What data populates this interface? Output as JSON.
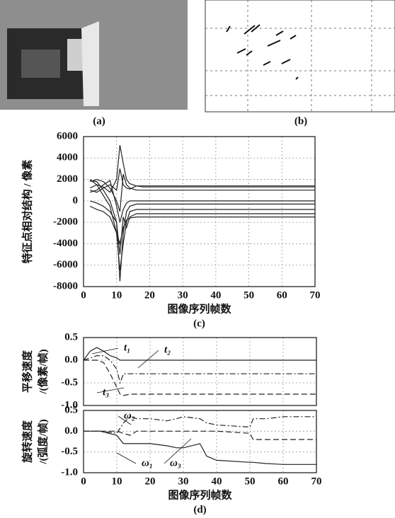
{
  "figures": [
    {
      "caption": "(a)"
    },
    {
      "caption": "(b)"
    }
  ],
  "chart_data": [
    {
      "type": "line",
      "caption": "(c)",
      "xlabel": "图像序列帧数",
      "ylabel": "特征点相对结构 / 像素",
      "xlim": [
        0,
        70
      ],
      "xticks": [
        0,
        10,
        20,
        30,
        40,
        50,
        60,
        70
      ],
      "ylim": [
        -8000,
        6000
      ],
      "yticks": [
        -8000,
        -6000,
        -4000,
        -2000,
        0,
        2000,
        4000,
        6000
      ],
      "grid": true,
      "show_xtick_labels": true,
      "x": [
        2,
        4,
        6,
        8,
        10,
        11,
        12,
        13,
        14,
        16,
        18,
        70
      ],
      "series": [
        {
          "color": "#222222",
          "style": "solid",
          "values": [
            1200,
            1500,
            1300,
            800,
            2000,
            5200,
            3500,
            2000,
            1600,
            1400,
            1300,
            1300
          ]
        },
        {
          "color": "#222222",
          "style": "solid",
          "values": [
            1800,
            2000,
            1800,
            1200,
            0,
            -1000,
            2500,
            1500,
            1200,
            1000,
            1000,
            1000
          ]
        },
        {
          "color": "#222222",
          "style": "solid",
          "values": [
            800,
            1000,
            1500,
            1900,
            -500,
            -2000,
            -800,
            -200,
            0,
            0,
            0,
            0
          ]
        },
        {
          "color": "#222222",
          "style": "solid",
          "values": [
            1900,
            1800,
            1000,
            0,
            -2000,
            -7500,
            -3000,
            -1000,
            -500,
            -300,
            -300,
            -300
          ]
        },
        {
          "color": "#222222",
          "style": "solid",
          "values": [
            2000,
            1500,
            500,
            -500,
            -3000,
            -6500,
            -4000,
            -2000,
            -1000,
            -800,
            -800,
            -800
          ]
        },
        {
          "color": "#222222",
          "style": "solid",
          "values": [
            0,
            -200,
            -500,
            -1000,
            -2000,
            -5000,
            -1500,
            -2500,
            -1500,
            -1200,
            -1200,
            -1200
          ]
        },
        {
          "color": "#222222",
          "style": "solid",
          "values": [
            -500,
            -800,
            -1000,
            -1500,
            -3000,
            -4000,
            -2500,
            -1800,
            -1600,
            -1500,
            -1500,
            -1500
          ]
        },
        {
          "color": "#222222",
          "style": "solid",
          "values": [
            1000,
            800,
            1200,
            1500,
            1000,
            3000,
            1500,
            1200,
            1100,
            1400,
            1400,
            1400
          ]
        }
      ]
    },
    {
      "type": "line",
      "ylabel": [
        "平移速度",
        "/(像素/帧)"
      ],
      "xlim": [
        0,
        70
      ],
      "xticks": [
        0,
        10,
        20,
        30,
        40,
        50,
        60,
        70
      ],
      "show_xtick_labels": false,
      "ylim": [
        -1,
        0.5
      ],
      "yticks": [
        {
          "value": -1,
          "label": "-1.0"
        },
        {
          "value": -0.5,
          "label": "-0.5"
        },
        {
          "value": 0,
          "label": "0.0"
        },
        {
          "value": 0.5,
          "label": "0.5"
        }
      ],
      "grid": true,
      "x": [
        0,
        2,
        4,
        6,
        8,
        10,
        11,
        12,
        14,
        16,
        20,
        30,
        40,
        50,
        60,
        70
      ],
      "series": [
        {
          "name": "t₁",
          "color": "#222222",
          "style": "solid",
          "values": [
            0,
            0.2,
            0.28,
            0.2,
            0.1,
            0.05,
            0,
            0,
            0,
            0,
            0,
            0,
            0,
            0,
            0,
            0
          ]
        },
        {
          "name": "t₂",
          "color": "#222222",
          "style": "dashdot",
          "values": [
            0,
            0.05,
            0.1,
            0.1,
            0,
            -0.2,
            -0.5,
            -0.3,
            -0.3,
            -0.3,
            -0.3,
            -0.3,
            -0.3,
            -0.3,
            -0.3,
            -0.3
          ]
        },
        {
          "name": "t₃",
          "color": "#222222",
          "style": "dashed",
          "values": [
            0,
            0,
            0,
            -0.05,
            -0.3,
            -0.6,
            -0.75,
            -0.78,
            -0.75,
            -0.75,
            -0.75,
            -0.75,
            -0.75,
            -0.75,
            -0.75,
            -0.75
          ]
        }
      ]
    },
    {
      "type": "line",
      "caption": "(d)",
      "xlabel": "图像序列帧数",
      "ylabel": [
        "旋转速度",
        "/(弧度/帧)"
      ],
      "xlim": [
        0,
        70
      ],
      "xticks": [
        0,
        10,
        20,
        30,
        40,
        50,
        60,
        70
      ],
      "show_xtick_labels": true,
      "ylim": [
        -1,
        0.5
      ],
      "yticks": [
        {
          "value": -1,
          "label": "-1.0"
        },
        {
          "value": -0.5,
          "label": "-0.5"
        },
        {
          "value": 0,
          "label": "0.0"
        },
        {
          "value": 0.5,
          "label": "0.5"
        }
      ],
      "grid": true,
      "x": [
        0,
        5,
        10,
        12,
        14,
        16,
        20,
        25,
        28,
        30,
        35,
        37,
        40,
        50,
        51,
        55,
        60,
        70
      ],
      "series": [
        {
          "name": "ω₁",
          "color": "#222222",
          "style": "solid",
          "values": [
            0,
            0,
            -0.1,
            -0.3,
            -0.3,
            -0.3,
            -0.3,
            -0.35,
            -0.4,
            -0.4,
            -0.3,
            -0.6,
            -0.7,
            -0.75,
            -0.75,
            -0.78,
            -0.8,
            -0.8
          ]
        },
        {
          "name": "ω₂",
          "color": "#222222",
          "style": "dashdot",
          "values": [
            0,
            0,
            -0.05,
            0.2,
            0.35,
            0.3,
            0.3,
            0.25,
            0.3,
            0.35,
            0.3,
            0.2,
            0.15,
            0.1,
            0.3,
            0.3,
            0.35,
            0.35
          ]
        },
        {
          "name": "ω₃",
          "color": "#222222",
          "style": "dashed",
          "values": [
            0,
            0,
            0,
            -0.05,
            -0.1,
            0,
            0,
            0,
            0,
            0,
            0,
            0,
            0,
            -0.05,
            -0.2,
            -0.2,
            -0.2,
            -0.2
          ]
        }
      ]
    }
  ]
}
